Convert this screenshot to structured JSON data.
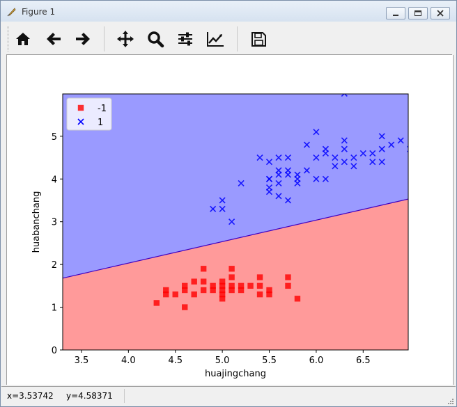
{
  "window": {
    "title": "Figure 1"
  },
  "toolbar": {
    "buttons": [
      {
        "name": "home-button",
        "icon": "home-icon"
      },
      {
        "name": "back-button",
        "icon": "arrow-left-icon"
      },
      {
        "name": "forward-button",
        "icon": "arrow-right-icon"
      },
      {
        "name": "pan-button",
        "icon": "move-icon"
      },
      {
        "name": "zoom-button",
        "icon": "magnifier-icon"
      },
      {
        "name": "configure-subplots-button",
        "icon": "sliders-icon"
      },
      {
        "name": "edit-axis-button",
        "icon": "line-chart-icon"
      },
      {
        "name": "save-button",
        "icon": "floppy-disk-icon"
      }
    ]
  },
  "status": {
    "x": "x=3.53742",
    "y": "y=4.58371"
  },
  "chart_data": {
    "type": "scatter",
    "title": "",
    "xlabel": "huajingchang",
    "ylabel": "huabanchang",
    "xlim": [
      3.3,
      6.98
    ],
    "ylim": [
      0,
      5.99
    ],
    "xticks": [
      "3.5",
      "4.0",
      "4.5",
      "5.0",
      "5.5",
      "6.0",
      "6.5"
    ],
    "yticks": [
      "0",
      "1",
      "2",
      "3",
      "4",
      "5"
    ],
    "decision_boundary": {
      "x": [
        3.3,
        6.98
      ],
      "y": [
        1.68,
        3.53
      ]
    },
    "region_colors": {
      "below": "#ff9a9a",
      "above": "#9a9aff"
    },
    "legend": {
      "position": "upper-left"
    },
    "series": [
      {
        "name": "-1",
        "marker": "square",
        "color": "#ff0000",
        "points": [
          [
            4.3,
            1.1
          ],
          [
            4.4,
            1.4
          ],
          [
            4.4,
            1.3
          ],
          [
            4.5,
            1.3
          ],
          [
            4.6,
            1.0
          ],
          [
            4.6,
            1.4
          ],
          [
            4.6,
            1.5
          ],
          [
            4.7,
            1.3
          ],
          [
            4.7,
            1.6
          ],
          [
            4.8,
            1.4
          ],
          [
            4.8,
            1.6
          ],
          [
            4.8,
            1.9
          ],
          [
            4.9,
            1.4
          ],
          [
            4.9,
            1.5
          ],
          [
            5.0,
            1.2
          ],
          [
            5.0,
            1.3
          ],
          [
            5.0,
            1.4
          ],
          [
            5.0,
            1.5
          ],
          [
            5.0,
            1.6
          ],
          [
            5.1,
            1.4
          ],
          [
            5.1,
            1.5
          ],
          [
            5.1,
            1.7
          ],
          [
            5.1,
            1.9
          ],
          [
            5.2,
            1.4
          ],
          [
            5.2,
            1.5
          ],
          [
            5.3,
            1.5
          ],
          [
            5.4,
            1.3
          ],
          [
            5.4,
            1.5
          ],
          [
            5.4,
            1.7
          ],
          [
            5.5,
            1.3
          ],
          [
            5.5,
            1.4
          ],
          [
            5.7,
            1.5
          ],
          [
            5.7,
            1.7
          ],
          [
            5.8,
            1.2
          ]
        ]
      },
      {
        "name": "1",
        "marker": "x",
        "color": "#0000ff",
        "points": [
          [
            4.9,
            3.3
          ],
          [
            5.0,
            3.3
          ],
          [
            5.0,
            3.5
          ],
          [
            5.1,
            3.0
          ],
          [
            5.2,
            3.9
          ],
          [
            5.4,
            4.5
          ],
          [
            5.5,
            4.0
          ],
          [
            5.5,
            4.4
          ],
          [
            5.5,
            3.8
          ],
          [
            5.5,
            3.7
          ],
          [
            5.5,
            4.0
          ],
          [
            5.6,
            4.5
          ],
          [
            5.6,
            4.2
          ],
          [
            5.6,
            4.1
          ],
          [
            5.6,
            3.9
          ],
          [
            5.6,
            3.6
          ],
          [
            5.7,
            4.5
          ],
          [
            5.7,
            4.2
          ],
          [
            5.7,
            4.1
          ],
          [
            5.7,
            3.5
          ],
          [
            5.8,
            4.1
          ],
          [
            5.8,
            4.0
          ],
          [
            5.8,
            3.9
          ],
          [
            5.9,
            4.2
          ],
          [
            5.9,
            4.8
          ],
          [
            6.0,
            4.5
          ],
          [
            6.0,
            5.1
          ],
          [
            6.0,
            4.0
          ],
          [
            6.1,
            4.7
          ],
          [
            6.1,
            4.6
          ],
          [
            6.1,
            4.0
          ],
          [
            6.2,
            4.5
          ],
          [
            6.2,
            4.3
          ],
          [
            6.3,
            4.7
          ],
          [
            6.3,
            4.4
          ],
          [
            6.3,
            4.9
          ],
          [
            6.3,
            6.0
          ],
          [
            6.4,
            4.5
          ],
          [
            6.4,
            4.3
          ],
          [
            6.5,
            4.6
          ],
          [
            6.6,
            4.6
          ],
          [
            6.6,
            4.4
          ],
          [
            6.7,
            4.7
          ],
          [
            6.7,
            4.4
          ],
          [
            6.7,
            5.0
          ],
          [
            6.8,
            4.8
          ],
          [
            6.9,
            4.9
          ],
          [
            7.0,
            4.7
          ]
        ]
      }
    ]
  }
}
